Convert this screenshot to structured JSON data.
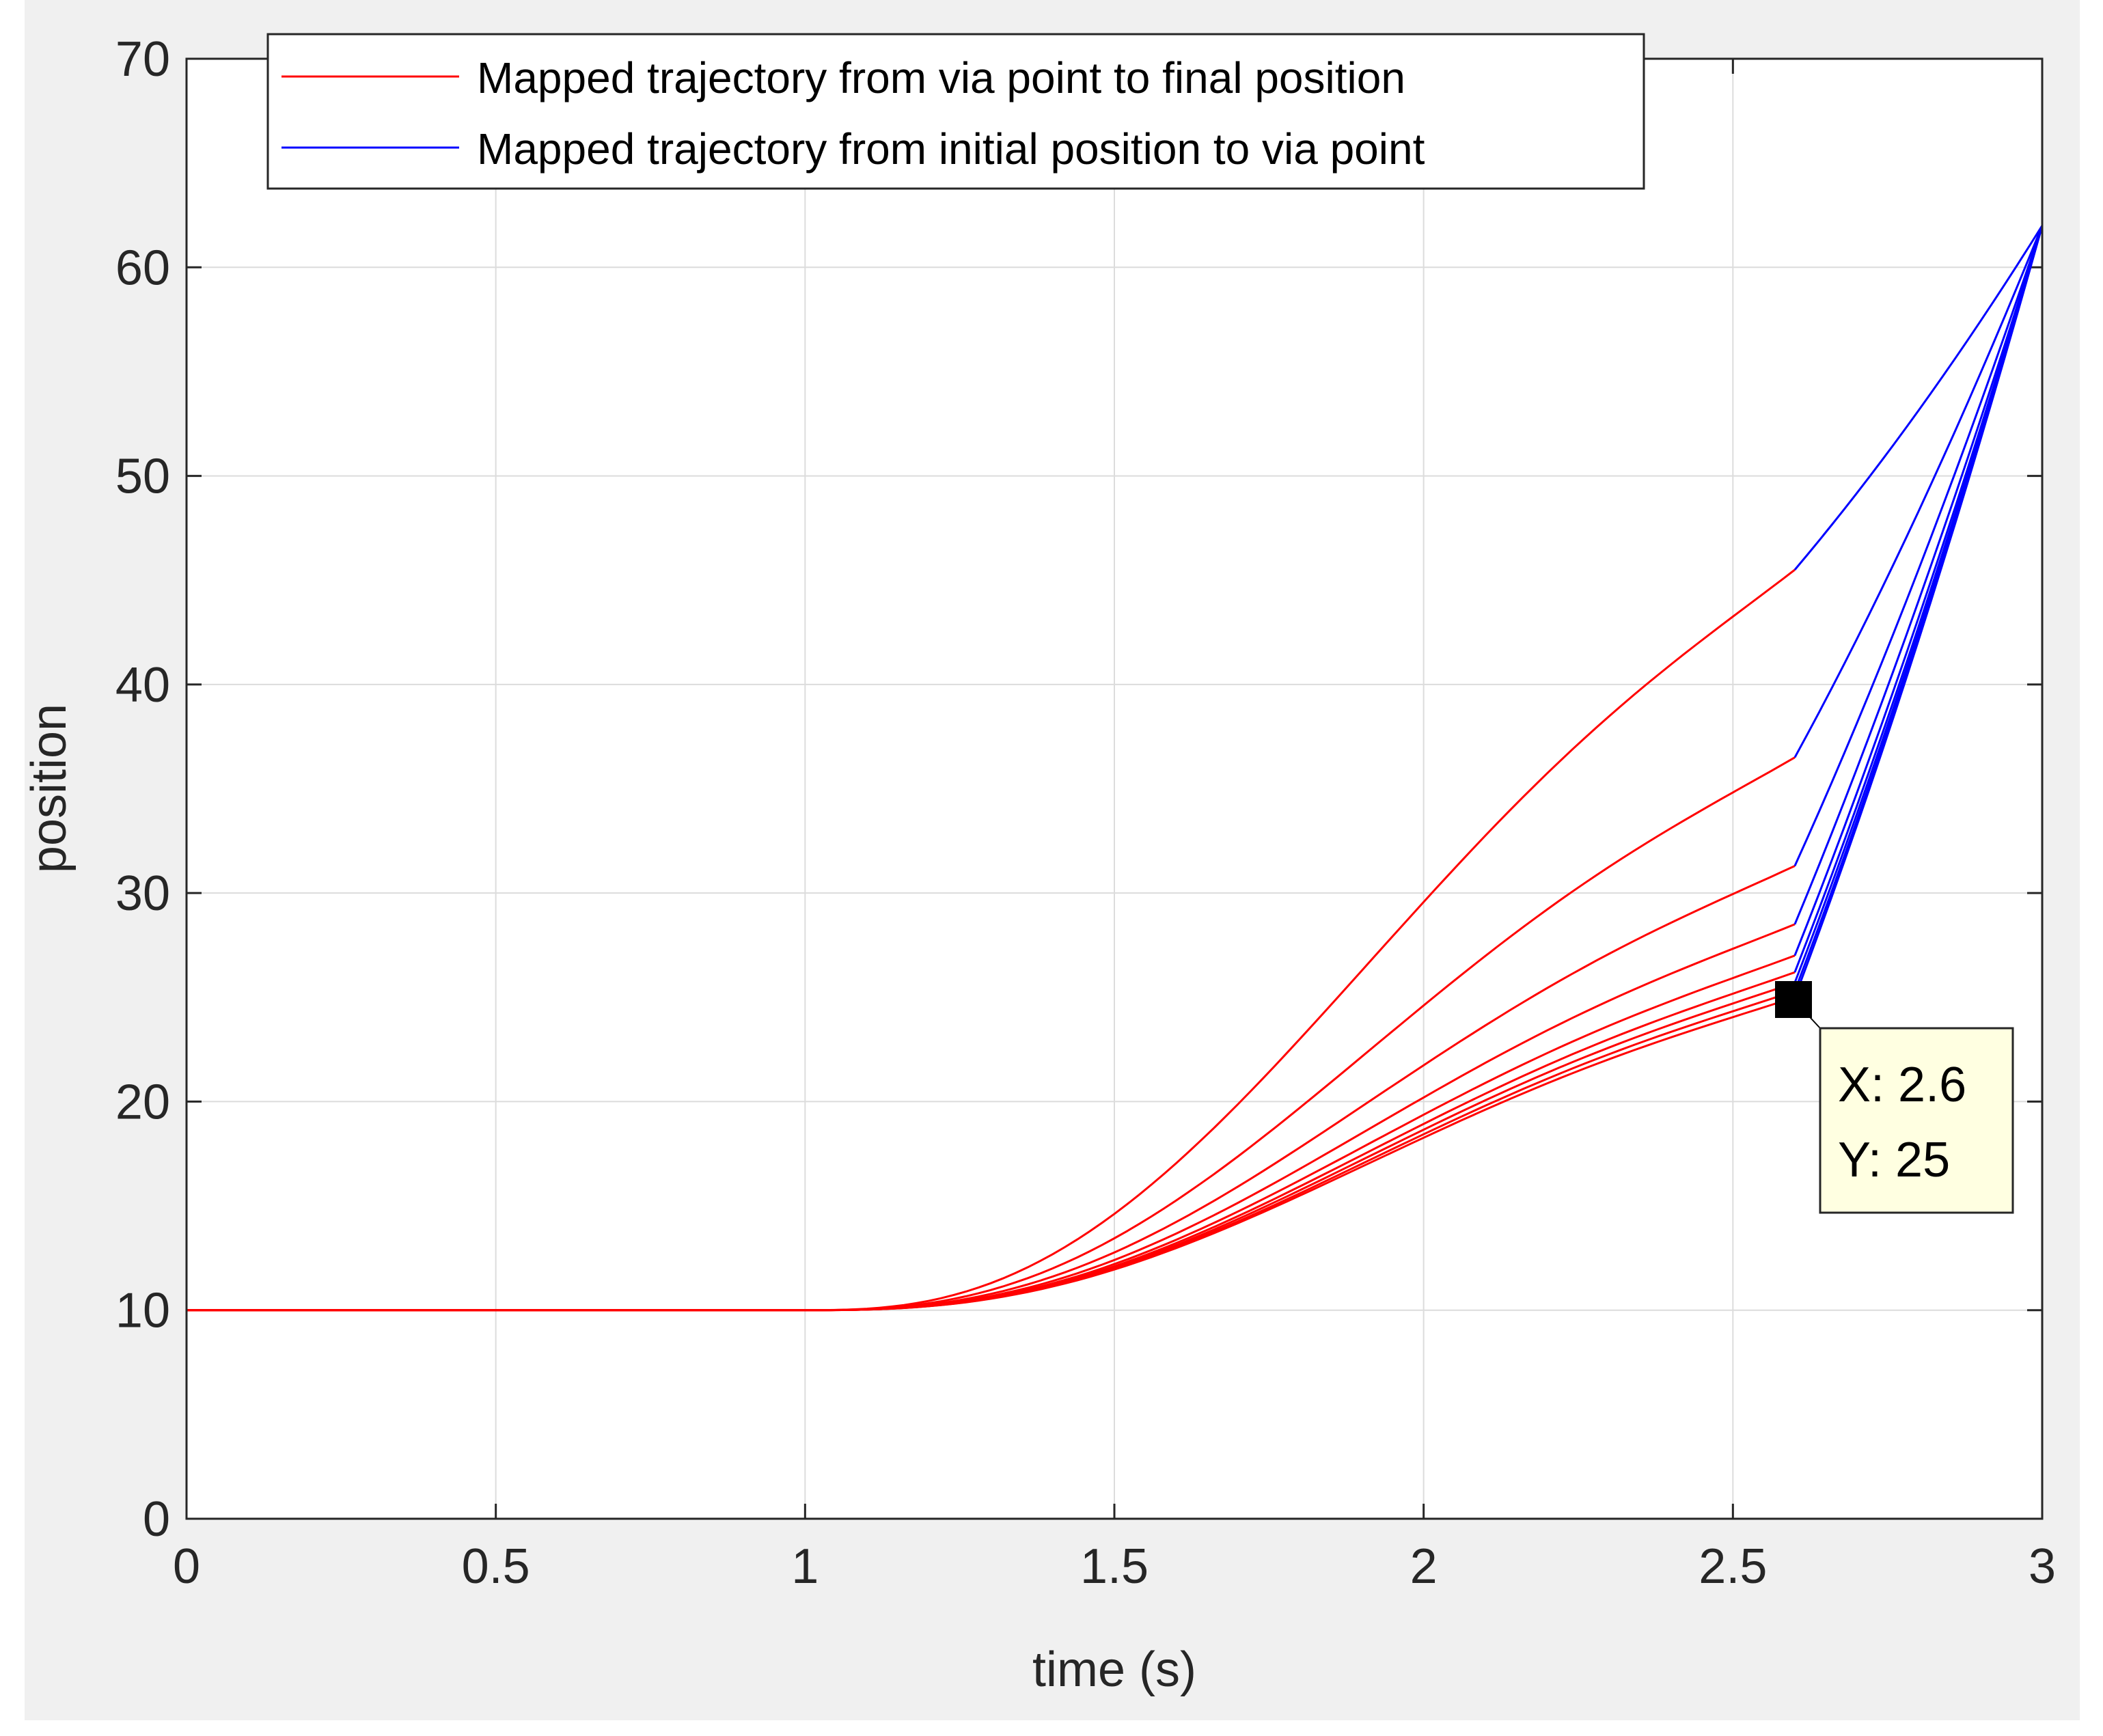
{
  "chart_data": {
    "type": "line",
    "title": "",
    "xlabel": "time (s)",
    "ylabel": "position",
    "xlim": [
      0,
      3
    ],
    "ylim": [
      0,
      70
    ],
    "grid": true,
    "xticks": [
      "0",
      "0.5",
      "1",
      "1.5",
      "2",
      "2.5",
      "3"
    ],
    "yticks": [
      "0",
      "10",
      "20",
      "30",
      "40",
      "50",
      "60",
      "70"
    ],
    "x_tick_values": [
      0,
      0.5,
      1,
      1.5,
      2,
      2.5,
      3
    ],
    "y_tick_values": [
      0,
      10,
      20,
      30,
      40,
      50,
      60,
      70
    ],
    "legend": {
      "placement": "top",
      "entries": [
        {
          "label": "Mapped trajectory from via point to final position",
          "color": "#ff0000"
        },
        {
          "label": "Mapped trajectory from initial position to via point",
          "color": "#0000ff"
        }
      ]
    },
    "colors": {
      "red": "#ff0000",
      "blue": "#0000ff",
      "background": "#f0f0f0",
      "axes": "#262626",
      "grid": "#dcdcdc",
      "datatip_bg": "#ffffe1"
    },
    "red_series": {
      "name": "Mapped trajectory from via point to final position",
      "start": 10,
      "t0": 1.0,
      "t1": 2.6,
      "ends": [
        45.5,
        36.5,
        31.3,
        28.5,
        27.0,
        26.2,
        25.7,
        25.3,
        25.0
      ]
    },
    "blue_series": {
      "name": "Mapped trajectory from initial position to via point",
      "t_start": 2.6,
      "t_end": 3.0,
      "end": 62,
      "starts": [
        45.5,
        36.5,
        31.3,
        28.5,
        27.0,
        26.2,
        25.7,
        25.3,
        25.0
      ]
    },
    "datatip": {
      "x": 2.6,
      "y": 25,
      "line1": "X: 2.6",
      "line2": "Y: 25"
    }
  }
}
